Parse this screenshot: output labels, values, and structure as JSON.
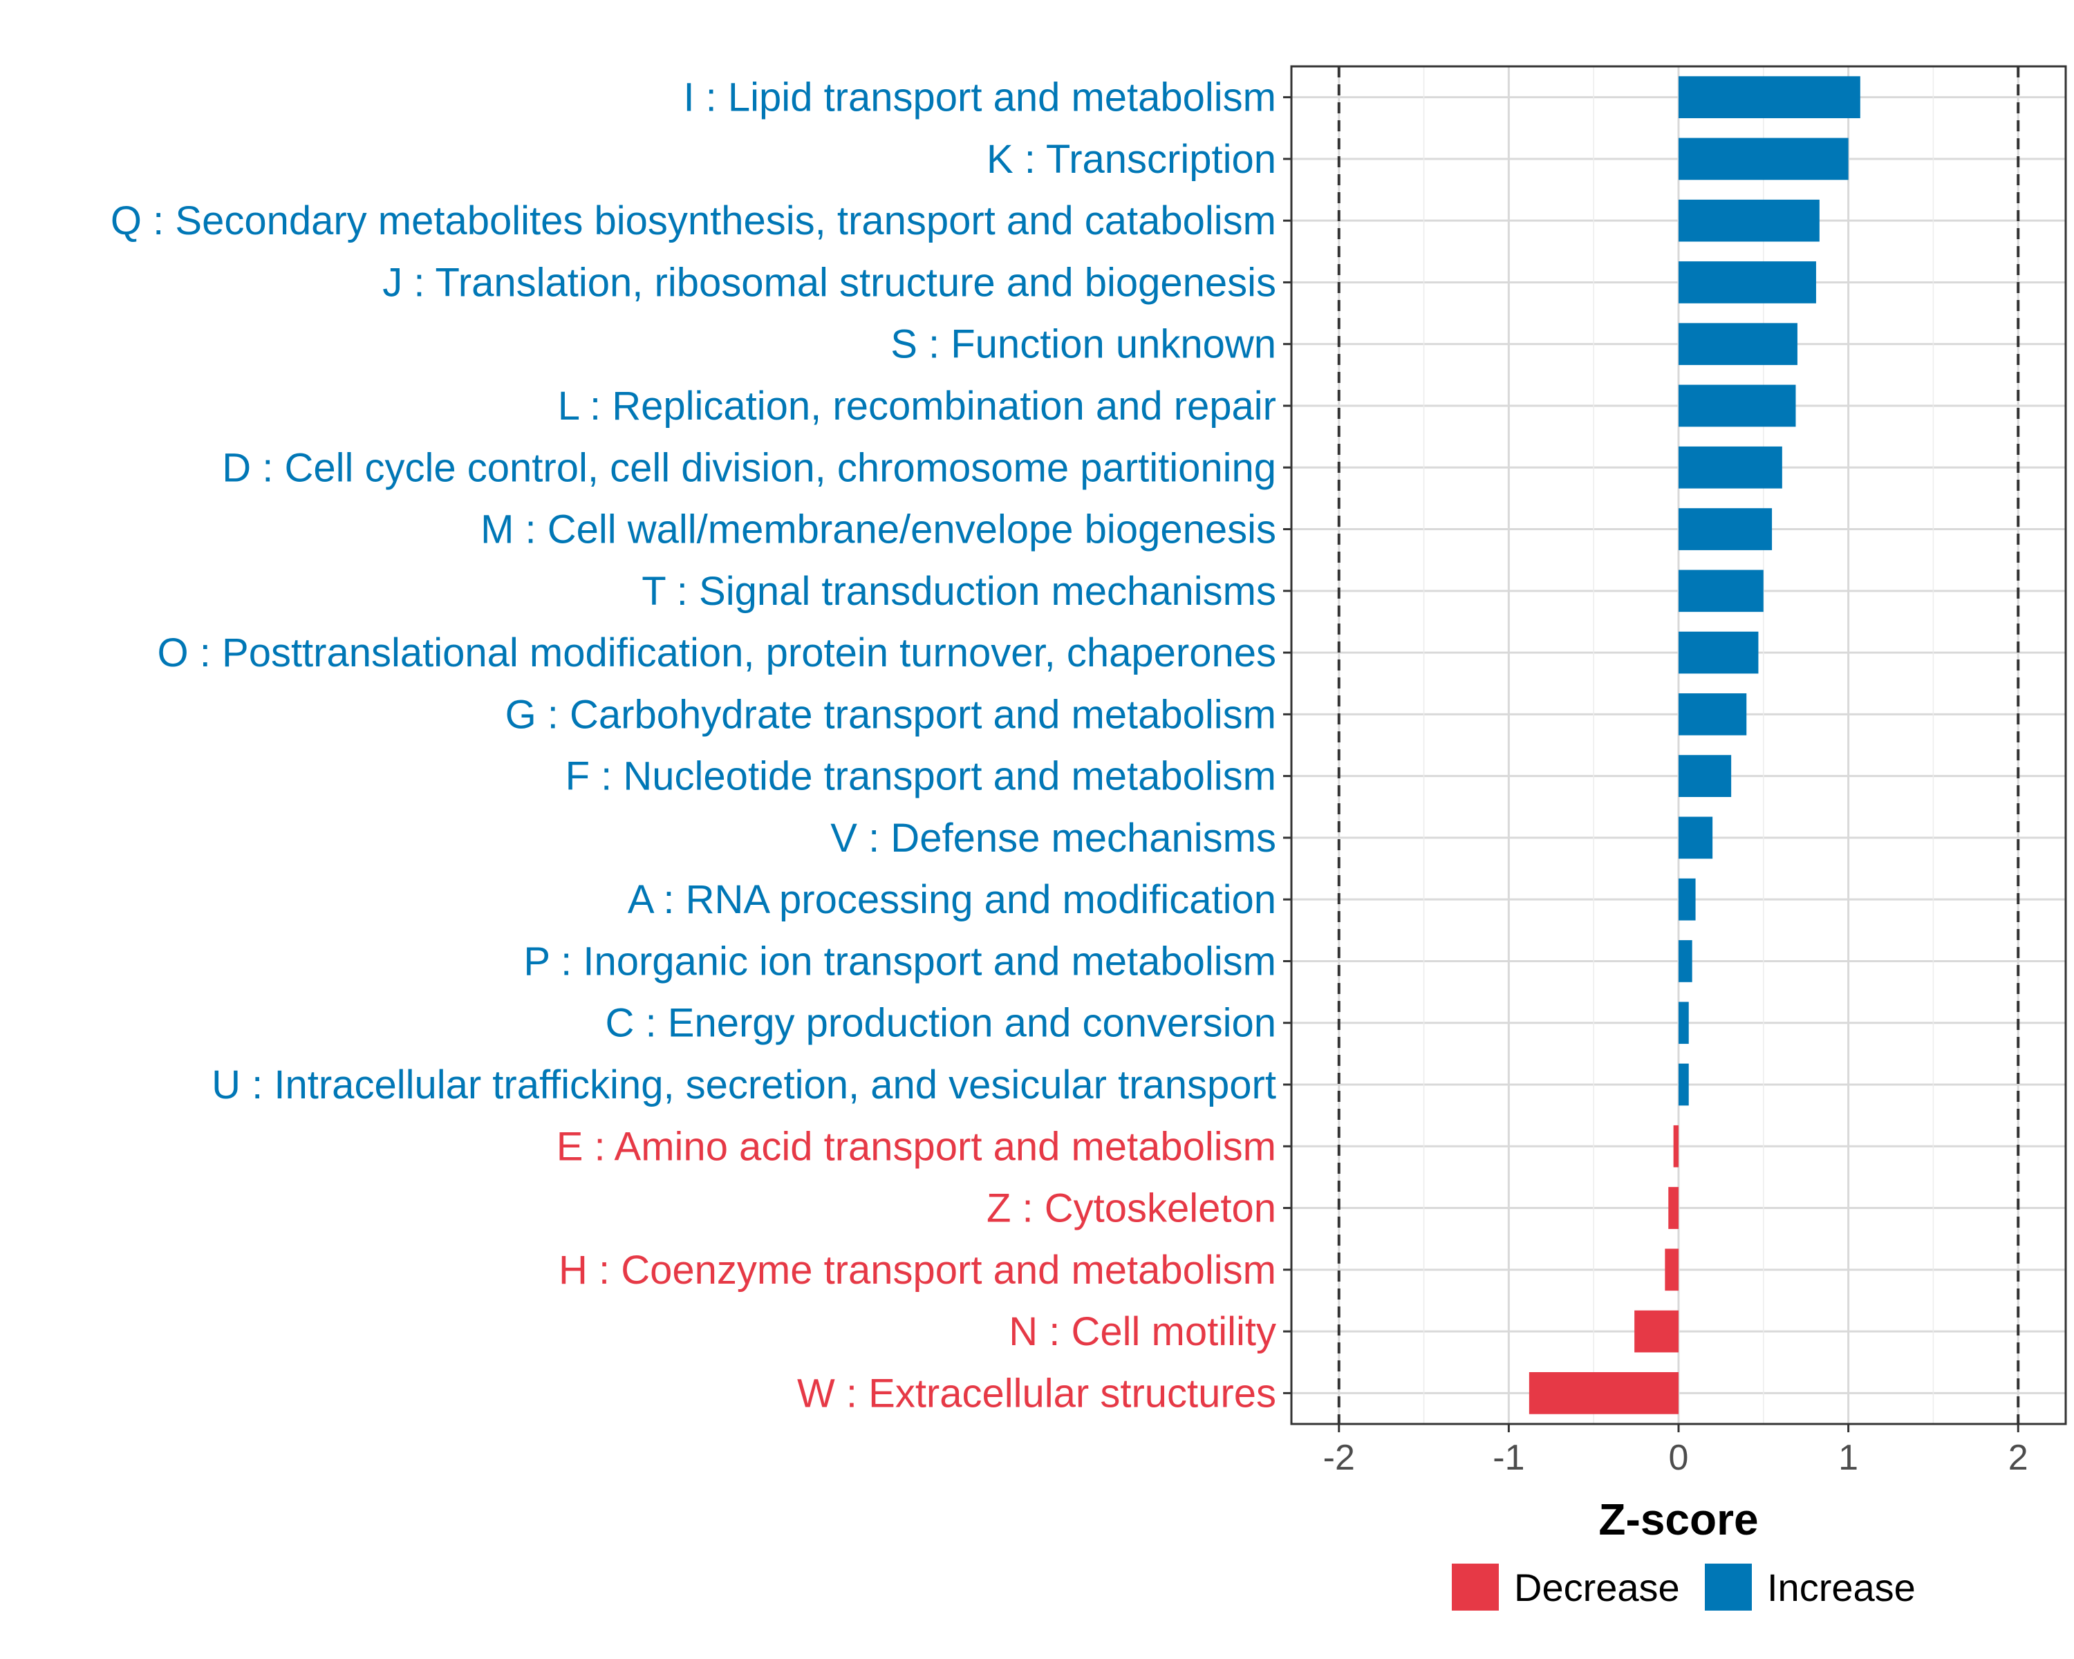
{
  "chart_data": {
    "type": "bar",
    "orientation": "horizontal",
    "title": "",
    "xlabel": "Z-score",
    "ylabel": "",
    "xlim": [
      -2.28,
      2.28
    ],
    "x_ticks": [
      -2,
      -1,
      0,
      1,
      2
    ],
    "x_tick_labels": [
      "-2",
      "-1",
      "0",
      "1",
      "2"
    ],
    "reference_lines": [
      -2,
      2
    ],
    "grid": true,
    "legend_position": "bottom",
    "colors": {
      "Decrease": "#E63946",
      "Increase": "#0077B6",
      "reference_line": "#333333",
      "grid": "#d9d9d9",
      "panel_border": "#333333"
    },
    "legend": [
      {
        "name": "Decrease",
        "color": "#E63946"
      },
      {
        "name": "Increase",
        "color": "#0077B6"
      }
    ],
    "categories": [
      "I : Lipid transport and metabolism",
      "K : Transcription",
      "Q : Secondary metabolites biosynthesis, transport and catabolism",
      "J : Translation, ribosomal structure and biogenesis",
      "S : Function unknown",
      "L : Replication, recombination and repair",
      "D : Cell cycle control, cell division, chromosome partitioning",
      "M : Cell wall/membrane/envelope biogenesis",
      "T : Signal transduction mechanisms",
      "O : Posttranslational modification, protein turnover, chaperones",
      "G : Carbohydrate transport and metabolism",
      "F : Nucleotide transport and metabolism",
      "V : Defense mechanisms",
      "A : RNA processing and modification",
      "P : Inorganic ion transport and metabolism",
      "C : Energy production and conversion",
      "U : Intracellular trafficking, secretion, and vesicular transport",
      "E : Amino acid transport and metabolism",
      "Z : Cytoskeleton",
      "H : Coenzyme transport and metabolism",
      "N : Cell motility",
      "W : Extracellular structures"
    ],
    "values": [
      1.07,
      1.0,
      0.83,
      0.81,
      0.7,
      0.69,
      0.61,
      0.55,
      0.5,
      0.47,
      0.4,
      0.31,
      0.2,
      0.1,
      0.08,
      0.06,
      0.06,
      -0.03,
      -0.06,
      -0.08,
      -0.26,
      -0.88
    ],
    "groups": [
      "Increase",
      "Increase",
      "Increase",
      "Increase",
      "Increase",
      "Increase",
      "Increase",
      "Increase",
      "Increase",
      "Increase",
      "Increase",
      "Increase",
      "Increase",
      "Increase",
      "Increase",
      "Increase",
      "Increase",
      "Decrease",
      "Decrease",
      "Decrease",
      "Decrease",
      "Decrease"
    ]
  }
}
